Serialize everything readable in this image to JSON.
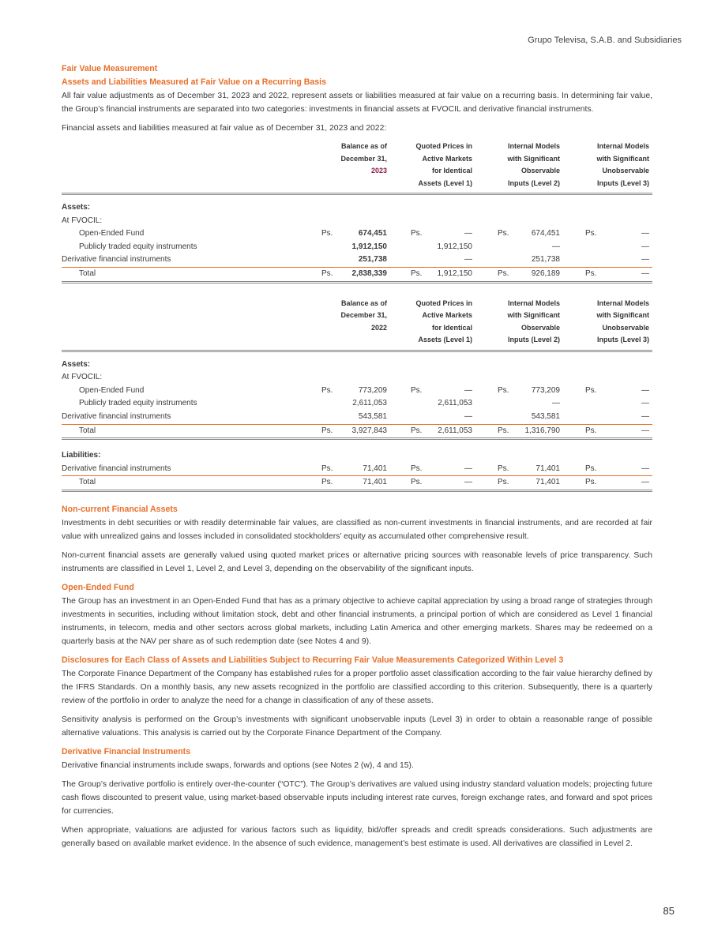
{
  "header": "Grupo Televisa, S.A.B. and Subsidiaries",
  "page_number": "85",
  "accent_color": "#e8702a",
  "intro": {
    "title": "Fair Value Measurement",
    "subtitle": "Assets and Liabilities Measured at Fair Value on a Recurring Basis",
    "p1": "All fair value adjustments as of December 31, 2023 and 2022, represent assets or liabilities measured at fair value on a recurring basis. In determining fair value, the Group’s financial instruments are separated into two categories: investments in financial assets at FVOCIL and derivative financial instruments.",
    "p2": "Financial assets and liabilities measured at fair value as of December 31, 2023 and 2022:"
  },
  "columns": {
    "c1a": "Balance as of",
    "c1b": "December 31,",
    "c2a": "Quoted Prices in",
    "c2b": "Active Markets",
    "c2c": "for Identical",
    "c2d": "Assets (Level 1)",
    "c3a": "Internal Models",
    "c3b": "with Significant",
    "c3c": "Observable",
    "c3d": "Inputs (Level 2)",
    "c4a": "Internal Models",
    "c4b": "with Significant",
    "c4c": "Unobservable",
    "c4d": "Inputs (Level 3)"
  },
  "ps": "Ps.",
  "dash": "—",
  "t2023": {
    "year": "2023",
    "assets": "Assets:",
    "fvocil": "At FVOCIL:",
    "rows": [
      {
        "label": "Open-Ended Fund",
        "v1": "674,451",
        "v2": "—",
        "v3": "674,451",
        "v4": "—"
      },
      {
        "label": "Publicly traded equity instruments",
        "v1": "1,912,150",
        "v2": "1,912,150",
        "v3": "—",
        "v4": "—"
      },
      {
        "label": "Derivative financial instruments",
        "v1": "251,738",
        "v2": "—",
        "v3": "251,738",
        "v4": "—"
      },
      {
        "label": "Total",
        "v1": "2,838,339",
        "v2": "1,912,150",
        "v3": "926,189",
        "v4": "—"
      }
    ]
  },
  "t2022": {
    "year": "2022",
    "assets": "Assets:",
    "fvocil": "At FVOCIL:",
    "rows": [
      {
        "label": "Open-Ended Fund",
        "v1": "773,209",
        "v2": "—",
        "v3": "773,209",
        "v4": "—"
      },
      {
        "label": "Publicly traded equity instruments",
        "v1": "2,611,053",
        "v2": "2,611,053",
        "v3": "—",
        "v4": "—"
      },
      {
        "label": "Derivative financial instruments",
        "v1": "543,581",
        "v2": "—",
        "v3": "543,581",
        "v4": "—"
      },
      {
        "label": "Total",
        "v1": "3,927,843",
        "v2": "2,611,053",
        "v3": "1,316,790",
        "v4": "—"
      }
    ],
    "liabilities": "Liabilities:",
    "lrows": [
      {
        "label": "Derivative financial instruments",
        "v1": "71,401",
        "v2": "—",
        "v3": "71,401",
        "v4": "—"
      },
      {
        "label": "Total",
        "v1": "71,401",
        "v2": "—",
        "v3": "71,401",
        "v4": "—"
      }
    ]
  },
  "sections": [
    {
      "title": "Non-current Financial Assets",
      "paras": [
        "Investments in debt securities or with readily determinable fair values, are classified as non-current investments in financial instruments, and are recorded at fair value with unrealized gains and losses included in consolidated stockholders’ equity as accumulated other comprehensive result.",
        "Non-current financial assets are generally valued using quoted market prices or alternative pricing sources with reasonable levels of price transparency. Such instruments are classified in Level 1, Level 2, and Level 3, depending on the observability of the significant inputs."
      ]
    },
    {
      "title": "Open-Ended Fund",
      "paras": [
        "The Group has an investment in an Open-Ended Fund that has as a primary objective to achieve capital appreciation by using a broad range of strategies through investments in securities, including without limitation stock, debt and other financial instruments, a principal portion of which are considered as Level 1 financial instruments, in telecom, media and other sectors across global markets, including Latin America and other emerging markets. Shares may be redeemed on a quarterly basis at the NAV per share as of such redemption date (see Notes 4 and 9)."
      ]
    },
    {
      "title": "Disclosures for Each Class of Assets and Liabilities Subject to Recurring Fair Value Measurements Categorized Within Level 3",
      "paras": [
        "The Corporate Finance Department of the Company has established rules for a proper portfolio asset classification according to the fair value hierarchy defined by the IFRS Standards. On a monthly basis, any new assets recognized in the portfolio are classified according to this criterion. Subsequently, there is a quarterly review of the portfolio in order to analyze the need for a change in classification of any of these assets.",
        "Sensitivity analysis is performed on the Group’s investments with significant unobservable inputs (Level 3) in order to obtain a reasonable range of possible alternative valuations. This analysis is carried out by the Corporate Finance Department of the Company."
      ]
    },
    {
      "title": "Derivative Financial Instruments",
      "paras": [
        "Derivative financial instruments include swaps, forwards and options (see Notes 2 (w), 4 and 15).",
        "The Group’s derivative portfolio is entirely over-the-counter (“OTC”). The Group’s derivatives are valued using industry standard valuation models; projecting future cash flows discounted to present value, using market-based observable inputs including interest rate curves, foreign exchange rates, and forward and spot prices for currencies.",
        "When appropriate, valuations are adjusted for various factors such as liquidity, bid/offer spreads and credit spreads considerations. Such adjustments are generally based on available market evidence. In the absence of such evidence, management’s best estimate is used. All derivatives are classified in Level 2."
      ]
    }
  ]
}
